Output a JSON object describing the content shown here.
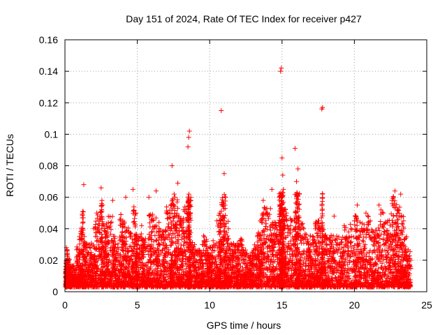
{
  "chart_data": {
    "type": "scatter",
    "title": "Day 151 of 2024, Rate Of TEC Index for receiver p427",
    "xlabel": "GPS time / hours",
    "ylabel": "ROTI / TECUs",
    "xlim": [
      0,
      25
    ],
    "ylim": [
      0,
      0.16
    ],
    "xticks": [
      0,
      5,
      10,
      15,
      20,
      25
    ],
    "xtick_labels": [
      "0",
      "5",
      "10",
      "15",
      "20",
      "25"
    ],
    "yticks": [
      0,
      0.02,
      0.04,
      0.06,
      0.08,
      0.1,
      0.12,
      0.14,
      0.16
    ],
    "ytick_labels": [
      "0",
      "0.02",
      "0.04",
      "0.06",
      "0.08",
      "0.1",
      "0.12",
      "0.14",
      "0.16"
    ],
    "grid": true,
    "marker": "+",
    "marker_color": "#ff0000",
    "series": [
      {
        "name": "ROTI",
        "points": [
          [
            0.05,
            0.012
          ],
          [
            0.1,
            0.028
          ],
          [
            0.2,
            0.02
          ],
          [
            0.35,
            0.015
          ],
          [
            0.5,
            0.009
          ],
          [
            0.8,
            0.022
          ],
          [
            1.0,
            0.035
          ],
          [
            1.2,
            0.047
          ],
          [
            1.3,
            0.068
          ],
          [
            1.5,
            0.03
          ],
          [
            1.8,
            0.025
          ],
          [
            2.0,
            0.04
          ],
          [
            2.2,
            0.05
          ],
          [
            2.5,
            0.066
          ],
          [
            2.6,
            0.055
          ],
          [
            2.8,
            0.038
          ],
          [
            3.0,
            0.044
          ],
          [
            3.3,
            0.058
          ],
          [
            3.5,
            0.03
          ],
          [
            3.8,
            0.046
          ],
          [
            4.0,
            0.045
          ],
          [
            4.2,
            0.06
          ],
          [
            4.5,
            0.035
          ],
          [
            4.7,
            0.065
          ],
          [
            4.9,
            0.05
          ],
          [
            5.0,
            0.032
          ],
          [
            5.3,
            0.042
          ],
          [
            5.5,
            0.028
          ],
          [
            5.8,
            0.06
          ],
          [
            6.0,
            0.045
          ],
          [
            6.3,
            0.064
          ],
          [
            6.5,
            0.04
          ],
          [
            6.8,
            0.035
          ],
          [
            7.0,
            0.05
          ],
          [
            7.3,
            0.055
          ],
          [
            7.4,
            0.08
          ],
          [
            7.6,
            0.06
          ],
          [
            7.8,
            0.069
          ],
          [
            8.0,
            0.045
          ],
          [
            8.2,
            0.052
          ],
          [
            8.5,
            0.092
          ],
          [
            8.55,
            0.098
          ],
          [
            8.6,
            0.102
          ],
          [
            8.7,
            0.058
          ],
          [
            9.0,
            0.025
          ],
          [
            9.3,
            0.02
          ],
          [
            9.5,
            0.03
          ],
          [
            9.8,
            0.032
          ],
          [
            10.0,
            0.022
          ],
          [
            10.2,
            0.028
          ],
          [
            10.5,
            0.045
          ],
          [
            10.7,
            0.05
          ],
          [
            10.8,
            0.115
          ],
          [
            11.0,
            0.075
          ],
          [
            11.1,
            0.06
          ],
          [
            11.3,
            0.04
          ],
          [
            11.5,
            0.03
          ],
          [
            11.8,
            0.025
          ],
          [
            12.0,
            0.03
          ],
          [
            12.3,
            0.028
          ],
          [
            12.5,
            0.02
          ],
          [
            12.8,
            0.018
          ],
          [
            13.0,
            0.025
          ],
          [
            13.3,
            0.035
          ],
          [
            13.5,
            0.045
          ],
          [
            13.7,
            0.058
          ],
          [
            14.0,
            0.05
          ],
          [
            14.3,
            0.065
          ],
          [
            14.5,
            0.04
          ],
          [
            14.8,
            0.06
          ],
          [
            14.9,
            0.14
          ],
          [
            14.95,
            0.142
          ],
          [
            15.0,
            0.085
          ],
          [
            15.05,
            0.074
          ],
          [
            15.1,
            0.065
          ],
          [
            15.3,
            0.05
          ],
          [
            15.6,
            0.042
          ],
          [
            15.9,
            0.091
          ],
          [
            16.0,
            0.07
          ],
          [
            16.1,
            0.078
          ],
          [
            16.2,
            0.062
          ],
          [
            16.5,
            0.04
          ],
          [
            16.8,
            0.032
          ],
          [
            17.0,
            0.03
          ],
          [
            17.3,
            0.04
          ],
          [
            17.5,
            0.045
          ],
          [
            17.75,
            0.116
          ],
          [
            17.8,
            0.117
          ],
          [
            18.0,
            0.035
          ],
          [
            18.3,
            0.03
          ],
          [
            18.6,
            0.048
          ],
          [
            19.0,
            0.03
          ],
          [
            19.3,
            0.042
          ],
          [
            19.6,
            0.038
          ],
          [
            20.0,
            0.045
          ],
          [
            20.2,
            0.055
          ],
          [
            20.5,
            0.04
          ],
          [
            20.8,
            0.05
          ],
          [
            21.1,
            0.045
          ],
          [
            21.4,
            0.035
          ],
          [
            21.7,
            0.055
          ],
          [
            22.0,
            0.05
          ],
          [
            22.3,
            0.045
          ],
          [
            22.6,
            0.058
          ],
          [
            22.8,
            0.064
          ],
          [
            23.0,
            0.052
          ],
          [
            23.2,
            0.062
          ],
          [
            23.4,
            0.045
          ],
          [
            23.6,
            0.035
          ],
          [
            23.9,
            0.02
          ]
        ]
      }
    ]
  }
}
